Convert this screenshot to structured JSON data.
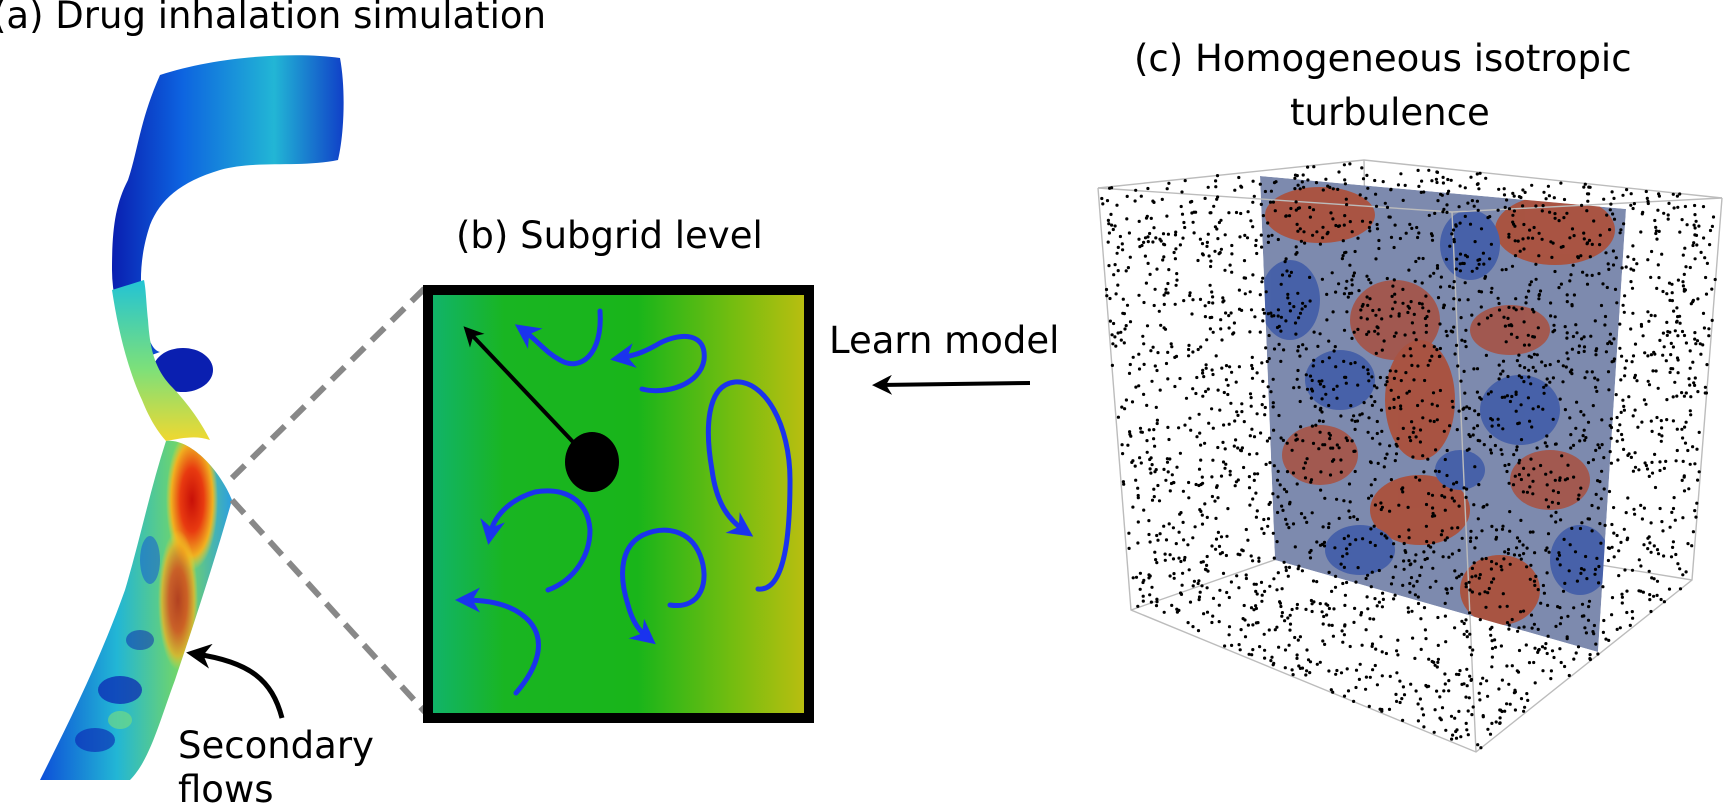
{
  "panels": {
    "a": {
      "title": "(a) Drug inhalation simulation",
      "annotation_line1": "Secondary",
      "annotation_line2": "flows"
    },
    "b": {
      "title": "(b) Subgrid level"
    },
    "c": {
      "title_line1": "(c) Homogeneous isotropic",
      "title_line2": "turbulence"
    }
  },
  "arrow_label": "Learn model",
  "colors": {
    "flow_arrows": "#1a33ee",
    "zoom_lines": "#888888",
    "subgrid_gradient": [
      "#10b36e",
      "#19b522",
      "#74bd10",
      "#bdbe10"
    ],
    "jet_colormap": [
      "#0a1fb0",
      "#0d63e0",
      "#22c3d5",
      "#7ce07a",
      "#f0d830",
      "#e83a10",
      "#c81008"
    ],
    "turbulence_cool": "#3e5aa8",
    "turbulence_warm": "#b04a30"
  }
}
